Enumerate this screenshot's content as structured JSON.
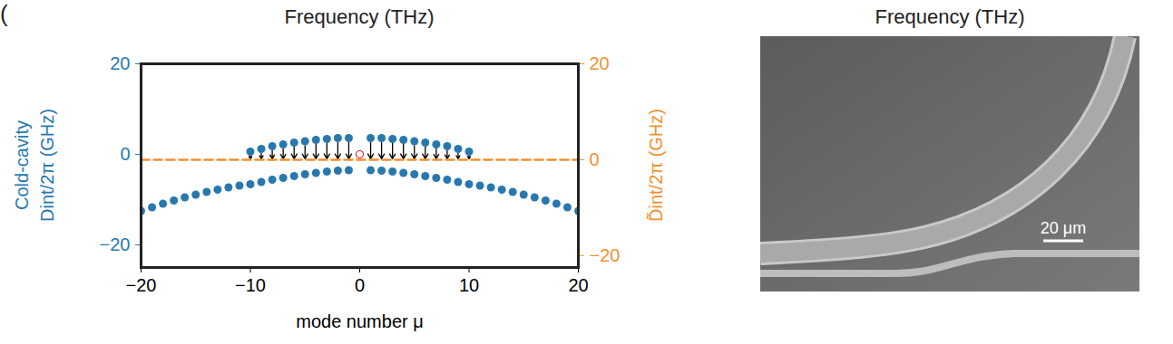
{
  "chart_data": [
    {
      "type": "scatter",
      "title": "Frequency (THz)",
      "annotations": [
        "("
      ],
      "x_label": "mode number μ",
      "y_label": "Cold-cavity\nDint/2π (GHz)",
      "y2_label": "D̃int/2π (GHz)",
      "xlim": [
        -20,
        20
      ],
      "xticks": [
        -20,
        -10,
        0,
        10,
        20
      ],
      "ylim": [
        -25,
        20
      ],
      "yticks": [
        -20,
        0,
        20
      ],
      "y2lim": [
        -22.5,
        20
      ],
      "y2ticks": [
        -20,
        0,
        20
      ],
      "series": [
        {
          "type": "scatter",
          "marker": "circle",
          "color": "#2878b0",
          "x": [
            -10,
            -9,
            -8,
            -7,
            -6,
            -5,
            -4,
            -3,
            -2,
            -1,
            1,
            2,
            3,
            4,
            5,
            6,
            7,
            8,
            9,
            10
          ],
          "values": [
            0.6,
            1.2,
            1.8,
            2.2,
            2.6,
            2.9,
            3.2,
            3.4,
            3.6,
            3.6,
            3.6,
            3.6,
            3.4,
            3.2,
            2.9,
            2.6,
            2.2,
            1.8,
            1.2,
            0.6
          ]
        },
        {
          "type": "scatter",
          "marker": "circle",
          "color": "#2878b0",
          "x": [
            -20,
            -19,
            -18,
            -17,
            -16,
            -15,
            -14,
            -13,
            -12,
            -11,
            -10,
            -9,
            -8,
            -7,
            -6,
            -5,
            -4,
            -3,
            -2,
            -1,
            1,
            2,
            3,
            4,
            5,
            6,
            7,
            8,
            9,
            10,
            11,
            12,
            13,
            14,
            15,
            16,
            17,
            18,
            19,
            20
          ],
          "values": [
            -12.5,
            -11.7,
            -10.9,
            -10.2,
            -9.5,
            -8.9,
            -8.3,
            -7.8,
            -7.3,
            -6.9,
            -6.6,
            -6.1,
            -5.6,
            -5.2,
            -4.8,
            -4.4,
            -4.1,
            -3.8,
            -3.6,
            -3.5,
            -3.5,
            -3.6,
            -3.8,
            -4.1,
            -4.4,
            -4.8,
            -5.2,
            -5.6,
            -6.1,
            -6.6,
            -6.9,
            -7.3,
            -7.8,
            -8.3,
            -8.9,
            -9.5,
            -10.2,
            -10.9,
            -11.7,
            -12.5
          ]
        },
        {
          "type": "scatter",
          "marker": "open circle",
          "color": "#d62728",
          "x": [
            0
          ],
          "values": [
            0
          ]
        },
        {
          "type": "line",
          "line_style": "dashed",
          "color": "#f0912f",
          "axis": "y2",
          "x": [
            -20,
            20
          ],
          "values": [
            0,
            0
          ]
        }
      ]
    },
    {
      "type": "image",
      "title": "Frequency (THz)",
      "annotations": [
        "20 μm"
      ]
    }
  ]
}
